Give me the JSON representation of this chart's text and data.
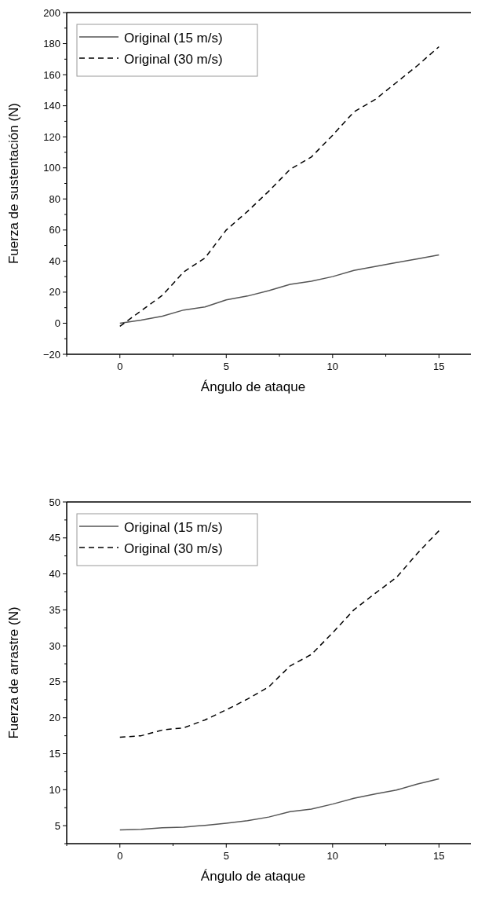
{
  "chart_data": [
    {
      "type": "line",
      "xlabel": "Ángulo de ataque",
      "ylabel": "Fuerza de sustentación (N)",
      "x": [
        0,
        1,
        2,
        3,
        4,
        5,
        6,
        7,
        8,
        9,
        10,
        11,
        12,
        13,
        14,
        15
      ],
      "series": [
        {
          "name": "Original (15 m/s)",
          "color": "#555555",
          "line_style": "solid",
          "values": [
            0,
            2,
            4.5,
            8.5,
            10.5,
            15,
            17.5,
            21,
            25,
            27,
            30,
            34,
            36.5,
            39,
            41.5,
            44
          ]
        },
        {
          "name": "Original (30 m/s)",
          "color": "#000000",
          "line_style": "dashed",
          "values": [
            -2,
            8,
            18,
            33,
            42,
            60,
            72,
            85,
            99,
            107,
            121,
            136,
            144,
            155,
            166,
            178
          ]
        }
      ],
      "xlim": [
        -2.5,
        16.5
      ],
      "xticks": [
        {
          "value": -2.5,
          "label": null
        },
        0,
        {
          "value": 2.5,
          "label": null
        },
        5,
        {
          "value": 7.5,
          "label": null
        },
        10,
        {
          "value": 12.5,
          "label": null
        },
        15
      ],
      "ylim": [
        -20,
        200
      ],
      "yticks": [
        -20,
        {
          "value": -10,
          "label": null
        },
        0,
        {
          "value": 10,
          "label": null
        },
        20,
        {
          "value": 30,
          "label": null
        },
        40,
        {
          "value": 50,
          "label": null
        },
        60,
        {
          "value": 70,
          "label": null
        },
        80,
        {
          "value": 90,
          "label": null
        },
        100,
        {
          "value": 110,
          "label": null
        },
        120,
        {
          "value": 130,
          "label": null
        },
        140,
        {
          "value": 150,
          "label": null
        },
        160,
        {
          "value": 170,
          "label": null
        },
        180,
        {
          "value": 190,
          "label": null
        },
        200
      ],
      "legend": "top left",
      "grid": false
    },
    {
      "type": "line",
      "xlabel": "Ángulo de ataque",
      "ylabel": "Fuerza de arrastre (N)",
      "x": [
        0,
        1,
        2,
        3,
        4,
        5,
        6,
        7,
        8,
        9,
        10,
        11,
        12,
        13,
        14,
        15
      ],
      "series": [
        {
          "name": "Original (15 m/s)",
          "color": "#555555",
          "line_style": "solid",
          "values": [
            4.4,
            4.5,
            4.7,
            4.8,
            5.05,
            5.35,
            5.7,
            6.2,
            6.95,
            7.3,
            8,
            8.8,
            9.4,
            9.95,
            10.8,
            11.5
          ]
        },
        {
          "name": "Original (30 m/s)",
          "color": "#000000",
          "line_style": "dashed",
          "values": [
            17.3,
            17.5,
            18.3,
            18.6,
            19.7,
            21.1,
            22.6,
            24.3,
            27.2,
            28.8,
            31.8,
            35,
            37.3,
            39.5,
            42.9,
            46
          ]
        }
      ],
      "xlim": [
        -2.5,
        16.5
      ],
      "xticks": [
        {
          "value": -2.5,
          "label": null
        },
        0,
        {
          "value": 2.5,
          "label": null
        },
        5,
        {
          "value": 7.5,
          "label": null
        },
        10,
        {
          "value": 12.5,
          "label": null
        },
        15
      ],
      "ylim": [
        2.5,
        50
      ],
      "yticks": [
        {
          "value": 2.5,
          "label": null
        },
        5,
        {
          "value": 7.5,
          "label": null
        },
        10,
        {
          "value": 12.5,
          "label": null
        },
        15,
        {
          "value": 17.5,
          "label": null
        },
        20,
        {
          "value": 22.5,
          "label": null
        },
        25,
        {
          "value": 27.5,
          "label": null
        },
        30,
        {
          "value": 32.5,
          "label": null
        },
        35,
        {
          "value": 37.5,
          "label": null
        },
        40,
        {
          "value": 42.5,
          "label": null
        },
        45,
        {
          "value": 47.5,
          "label": null
        },
        50
      ],
      "legend": "top left",
      "grid": false
    }
  ]
}
